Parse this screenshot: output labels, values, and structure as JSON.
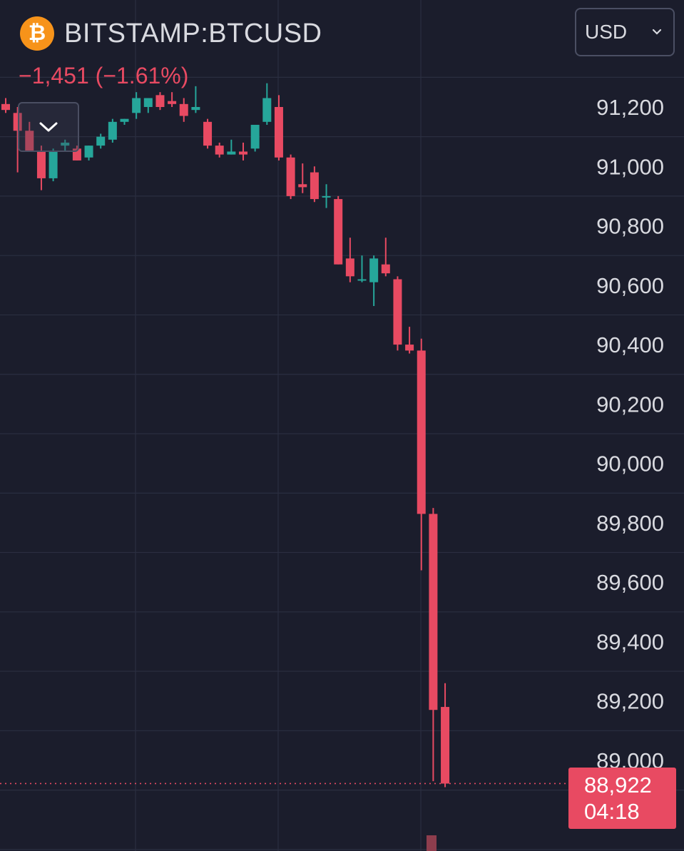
{
  "header": {
    "symbol": "BITSTAMP:BTCUSD",
    "change": "−1,451 (−1.61%)",
    "currency": "USD"
  },
  "colors": {
    "background": "#1b1d2c",
    "grid": "#2b2e40",
    "up": "#26a69a",
    "down": "#e84a62",
    "axis_text": "#d9dae0"
  },
  "icons": {
    "coin": "bitcoin-icon",
    "currency_dropdown": "chevron-down-icon",
    "collapse": "chevron-down-icon"
  },
  "price_label": {
    "price": "88,922",
    "countdown": "04:18"
  },
  "chart_data": {
    "type": "candlestick",
    "ylim": [
      88750,
      91330
    ],
    "y_ticks": [
      "91,200",
      "91,000",
      "90,800",
      "90,600",
      "90,400",
      "90,200",
      "90,000",
      "89,800",
      "89,600",
      "89,400",
      "89,200",
      "89,000"
    ],
    "current_price": 88922,
    "grid": true,
    "ohlc": [
      [
        91210,
        91230,
        91180,
        91190
      ],
      [
        91180,
        91200,
        90980,
        91120
      ],
      [
        91120,
        91150,
        91060,
        91050
      ],
      [
        91050,
        91070,
        90920,
        90960
      ],
      [
        90960,
        91060,
        90950,
        91050
      ],
      [
        91070,
        91090,
        91050,
        91080
      ],
      [
        91060,
        91070,
        91020,
        91020
      ],
      [
        91030,
        91070,
        91020,
        91070
      ],
      [
        91070,
        91110,
        91060,
        91100
      ],
      [
        91090,
        91160,
        91080,
        91150
      ],
      [
        91150,
        91160,
        91140,
        91160
      ],
      [
        91180,
        91250,
        91160,
        91230
      ],
      [
        91200,
        91230,
        91180,
        91230
      ],
      [
        91240,
        91250,
        91190,
        91200
      ],
      [
        91220,
        91250,
        91200,
        91210
      ],
      [
        91210,
        91230,
        91150,
        91170
      ],
      [
        91190,
        91270,
        91180,
        91200
      ],
      [
        91150,
        91160,
        91060,
        91070
      ],
      [
        91070,
        91080,
        91030,
        91040
      ],
      [
        91040,
        91090,
        91040,
        91050
      ],
      [
        91050,
        91080,
        91020,
        91040
      ],
      [
        91060,
        91140,
        91050,
        91140
      ],
      [
        91150,
        91280,
        91140,
        91230
      ],
      [
        91200,
        91240,
        91020,
        91030
      ],
      [
        91030,
        91040,
        90890,
        90900
      ],
      [
        90940,
        91010,
        90910,
        90930
      ],
      [
        90980,
        91000,
        90880,
        90890
      ],
      [
        90900,
        90940,
        90860,
        90900
      ],
      [
        90890,
        90900,
        90670,
        90670
      ],
      [
        90690,
        90760,
        90610,
        90630
      ],
      [
        90620,
        90700,
        90610,
        90620
      ],
      [
        90610,
        90700,
        90530,
        90690
      ],
      [
        90670,
        90760,
        90630,
        90640
      ],
      [
        90620,
        90630,
        90380,
        90400
      ],
      [
        90400,
        90460,
        90370,
        90380
      ],
      [
        90380,
        90420,
        89640,
        89830
      ],
      [
        89830,
        89850,
        88930,
        89170
      ],
      [
        89180,
        89260,
        88910,
        88922
      ]
    ]
  }
}
